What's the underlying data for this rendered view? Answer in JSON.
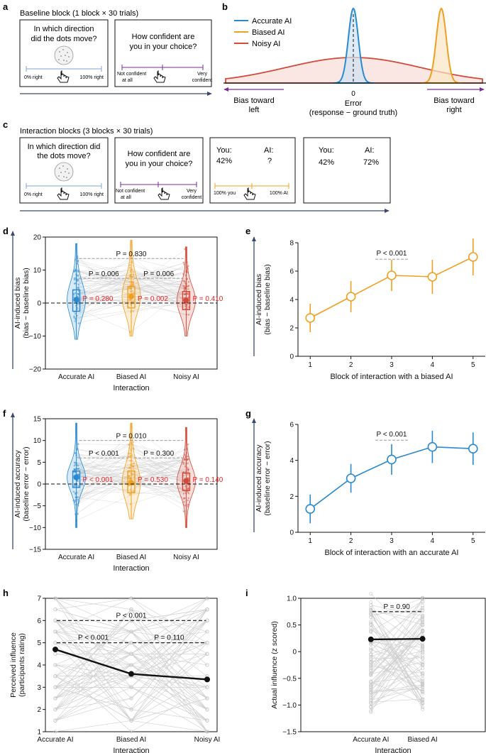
{
  "panel_labels": {
    "a": "a",
    "b": "b",
    "c": "c",
    "d": "d",
    "e": "e",
    "f": "f",
    "g": "g",
    "h": "h",
    "i": "i"
  },
  "colors": {
    "accurate": "#2a8ad0",
    "biased": "#f0a020",
    "noisy": "#d24a3a",
    "pvalue_red": "#e8262a",
    "axis_arrow": "#3b4a6b",
    "slider": "#7fa6d6",
    "purple": "#7b2d9b",
    "grey": "#9a9a9a"
  },
  "panel_a": {
    "title": "Baseline block (1 block × 30 trials)",
    "screen1": {
      "question_l1": "In which direction",
      "question_l2": "did the dots move?",
      "left": "0% right",
      "right": "100% right"
    },
    "screen2": {
      "question_l1": "How confident are",
      "question_l2": "you in your choice?",
      "left_l1": "Not confident",
      "left_l2": "at all",
      "right_l1": "Very",
      "right_l2": "confident"
    }
  },
  "panel_b": {
    "legend": [
      "Accurate AI",
      "Biased AI",
      "Noisy AI"
    ],
    "zero_label": "0",
    "xlabel_l1": "Error",
    "xlabel_l2": "(response − ground truth)",
    "left_l1": "Bias toward",
    "left_l2": "left",
    "right_l1": "Bias toward",
    "right_l2": "right"
  },
  "panel_c": {
    "title": "Interaction blocks (3 blocks × 30 trials)",
    "screen1": {
      "question_l1": "In which direction did",
      "question_l2": "the dots move?",
      "left": "0% right",
      "right": "100% right"
    },
    "screen2": {
      "question_l1": "How confident are",
      "question_l2": "you in your choice?",
      "left_l1": "Not confident",
      "left_l2": "at all",
      "right_l1": "Very",
      "right_l2": "confident"
    },
    "screen3": {
      "you_label": "You:",
      "you_value": "42%",
      "ai_label": "AI:",
      "ai_value": "?",
      "left": "100% you",
      "right": "100% AI"
    },
    "screen4": {
      "you_label": "You:",
      "you_value": "42%",
      "ai_label": "AI:",
      "ai_value": "72%"
    }
  },
  "chart_data": [
    {
      "id": "d",
      "type": "violin",
      "ylabel_l1": "AI-induced bias",
      "ylabel_l2": "(bias − baseline bias)",
      "xlabel": "Interaction",
      "categories": [
        "Accurate AI",
        "Biased AI",
        "Noisy AI"
      ],
      "ylim": [
        -20,
        20
      ],
      "yticks": [
        "−20",
        "−10",
        "0",
        "10",
        "20"
      ],
      "means": [
        1.0,
        2.0,
        0.8
      ],
      "box_q1": [
        -2.5,
        -1.5,
        -2.0
      ],
      "box_q3": [
        4.0,
        5.0,
        3.5
      ],
      "range_min": [
        -11,
        -10,
        -10
      ],
      "range_max": [
        18,
        19,
        17
      ],
      "brackets": [
        {
          "label": "P = 0.830",
          "from": 0,
          "to": 2,
          "y": 13.5
        },
        {
          "label": "P = 0.006",
          "from": 0,
          "to": 1,
          "y": 7.5
        },
        {
          "label": "P = 0.006",
          "from": 1,
          "to": 2,
          "y": 7.5
        }
      ],
      "vs_zero": [
        "P = 0.280",
        "P = 0.002",
        "P = 0.410"
      ]
    },
    {
      "id": "e",
      "type": "line",
      "ylabel_l1": "AI-induced bias",
      "ylabel_l2": "(bias − baseline bias)",
      "xlabel": "Block of interaction with a biased AI",
      "x": [
        1,
        2,
        3,
        4,
        5
      ],
      "y": [
        2.7,
        4.2,
        5.7,
        5.6,
        7.0
      ],
      "err": [
        1.0,
        1.1,
        1.1,
        1.2,
        1.3
      ],
      "ylim": [
        0,
        8
      ],
      "yticks": [
        "0",
        "2",
        "4",
        "6",
        "8"
      ],
      "xticks": [
        "1",
        "2",
        "3",
        "4",
        "5"
      ],
      "annotation": "P < 0.001"
    },
    {
      "id": "f",
      "type": "violin",
      "ylabel_l1": "AI-induced accuracy",
      "ylabel_l2": "(baseline error − error)",
      "xlabel": "Interaction",
      "categories": [
        "Accurate AI",
        "Biased AI",
        "Noisy AI"
      ],
      "ylim": [
        -15,
        15
      ],
      "yticks": [
        "−15",
        "−10",
        "−5",
        "0",
        "5",
        "10",
        "15"
      ],
      "means": [
        1.5,
        0.3,
        0.7
      ],
      "box_q1": [
        -0.8,
        -2.0,
        -1.5
      ],
      "box_q3": [
        3.0,
        3.0,
        2.5
      ],
      "range_min": [
        -10,
        -8,
        -10
      ],
      "range_max": [
        14,
        14,
        13
      ],
      "brackets": [
        {
          "label": "P = 0.010",
          "from": 0,
          "to": 2,
          "y": 10
        },
        {
          "label": "P < 0.001",
          "from": 0,
          "to": 1,
          "y": 6
        },
        {
          "label": "P = 0.300",
          "from": 1,
          "to": 2,
          "y": 6
        }
      ],
      "vs_zero": [
        "P < 0.001",
        "P = 0.530",
        "P = 0.140"
      ]
    },
    {
      "id": "g",
      "type": "line",
      "ylabel_l1": "AI-induced accuracy",
      "ylabel_l2": "(baseline error − error)",
      "xlabel": "Block of interaction with an accurate AI",
      "x": [
        1,
        2,
        3,
        4,
        5
      ],
      "y": [
        1.3,
        3.0,
        4.05,
        4.75,
        4.65
      ],
      "err": [
        0.8,
        0.8,
        0.85,
        0.9,
        0.9
      ],
      "ylim": [
        0,
        6
      ],
      "yticks": [
        "0",
        "2",
        "4",
        "6"
      ],
      "xticks": [
        "1",
        "2",
        "3",
        "4",
        "5"
      ],
      "annotation": "P < 0.001"
    },
    {
      "id": "h",
      "type": "line_paired",
      "ylabel_l1": "Perceived influence",
      "ylabel_l2": "(participants rating)",
      "xlabel": "Interaction",
      "categories": [
        "Accurate AI",
        "Biased AI",
        "Noisy AI"
      ],
      "means": [
        4.7,
        3.6,
        3.35
      ],
      "ylim": [
        1,
        7
      ],
      "yticks": [
        "1",
        "2",
        "3",
        "4",
        "5",
        "6",
        "7"
      ],
      "brackets": [
        {
          "label": "P < 0.001",
          "from": 0,
          "to": 2,
          "y": 6.0
        },
        {
          "label": "P < 0.001",
          "from": 0,
          "to": 1,
          "y": 5.0
        },
        {
          "label": "P = 0.110",
          "from": 1,
          "to": 2,
          "y": 5.0
        }
      ]
    },
    {
      "id": "i",
      "type": "line_paired",
      "ylabel_l1": "Actual influence (z scored)",
      "ylabel_l2": "",
      "xlabel": "Interaction",
      "categories": [
        "Accurate AI",
        "Biased AI"
      ],
      "means": [
        0.23,
        0.24
      ],
      "ylim": [
        -1.5,
        1.0
      ],
      "yticks": [
        "−1.5",
        "−1.0",
        "−0.5",
        "0",
        "0.5",
        "1.0"
      ],
      "brackets": [
        {
          "label": "P = 0.90",
          "from": 0,
          "to": 1,
          "y": 0.75
        }
      ]
    }
  ]
}
